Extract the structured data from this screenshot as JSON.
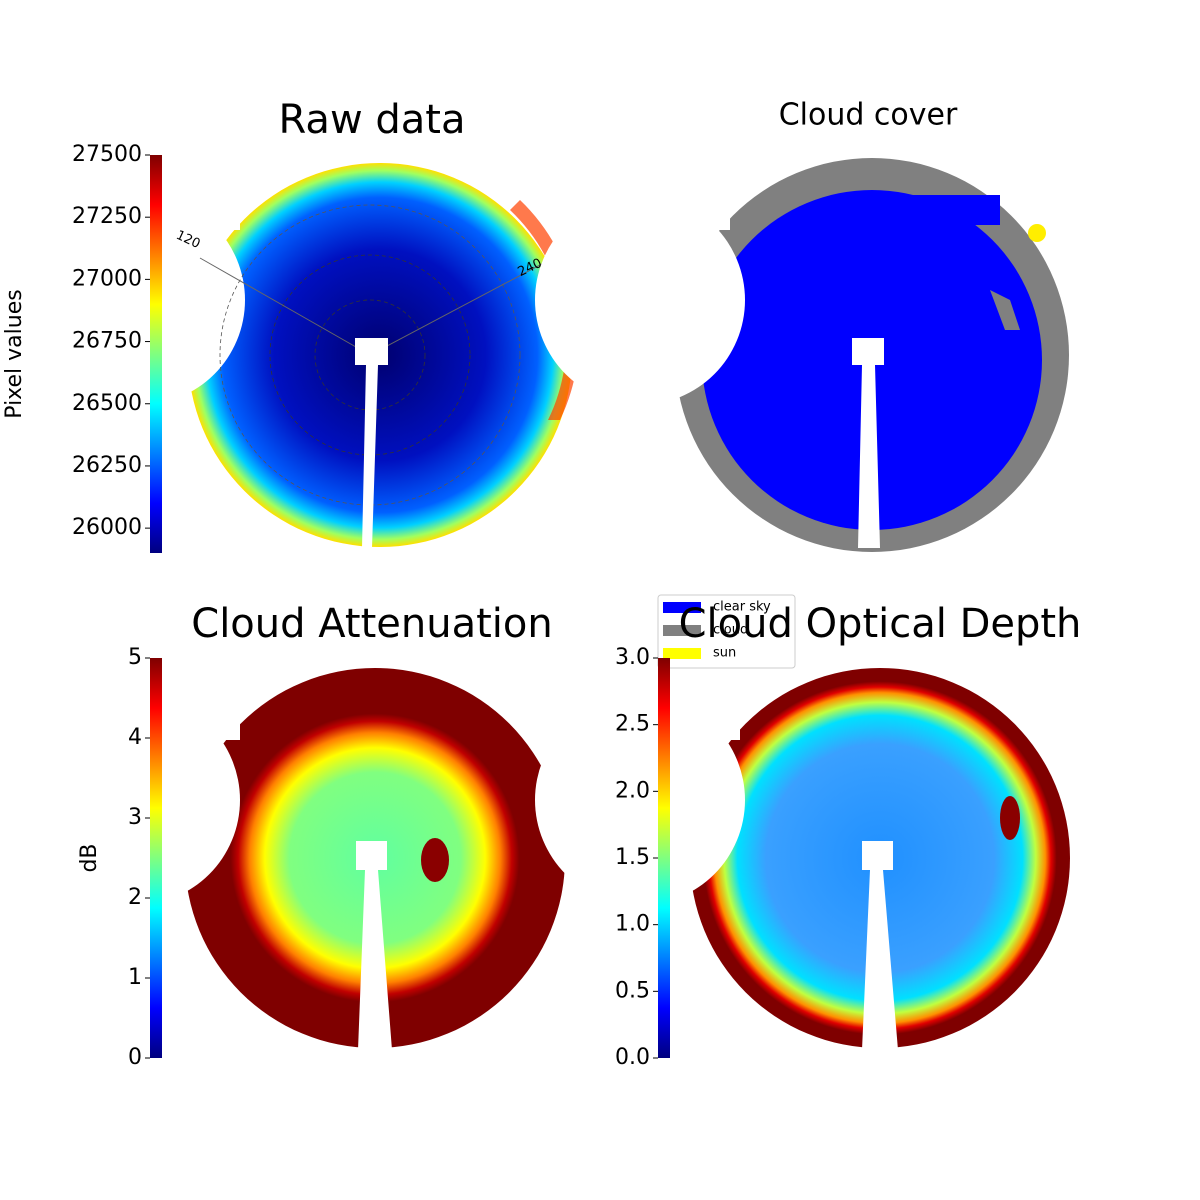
{
  "chart_data": [
    {
      "type": "image",
      "title": "Raw data",
      "colormap": "jet",
      "polar_labels": [
        "120",
        "240"
      ],
      "colorbar": {
        "label": "Pixel values",
        "lim": [
          25900,
          27500
        ],
        "ticks": [
          26000,
          26250,
          26500,
          26750,
          27000,
          27250,
          27500
        ]
      }
    },
    {
      "type": "image",
      "title": "Cloud cover",
      "legend": [
        {
          "name": "clear sky",
          "color": "#0000ff"
        },
        {
          "name": "cloud",
          "color": "#808080"
        },
        {
          "name": "sun",
          "color": "#ffff00"
        }
      ]
    },
    {
      "type": "image",
      "title": "Cloud Attenuation",
      "colormap": "jet",
      "colorbar": {
        "label": "dB",
        "lim": [
          0,
          5
        ],
        "ticks": [
          0,
          1,
          2,
          3,
          4,
          5
        ]
      }
    },
    {
      "type": "image",
      "title": "Cloud Optical Depth",
      "colormap": "jet",
      "colorbar": {
        "lim": [
          0,
          3
        ],
        "ticks": [
          {
            "value": 0,
            "label": "0.0"
          },
          {
            "value": 0.5,
            "label": "0.5"
          },
          {
            "value": 1,
            "label": "1.0"
          },
          {
            "value": 1.5,
            "label": "1.5"
          },
          {
            "value": 2,
            "label": "2.0"
          },
          {
            "value": 2.5,
            "label": "2.5"
          },
          {
            "value": 3,
            "label": "3.0"
          }
        ]
      }
    }
  ]
}
